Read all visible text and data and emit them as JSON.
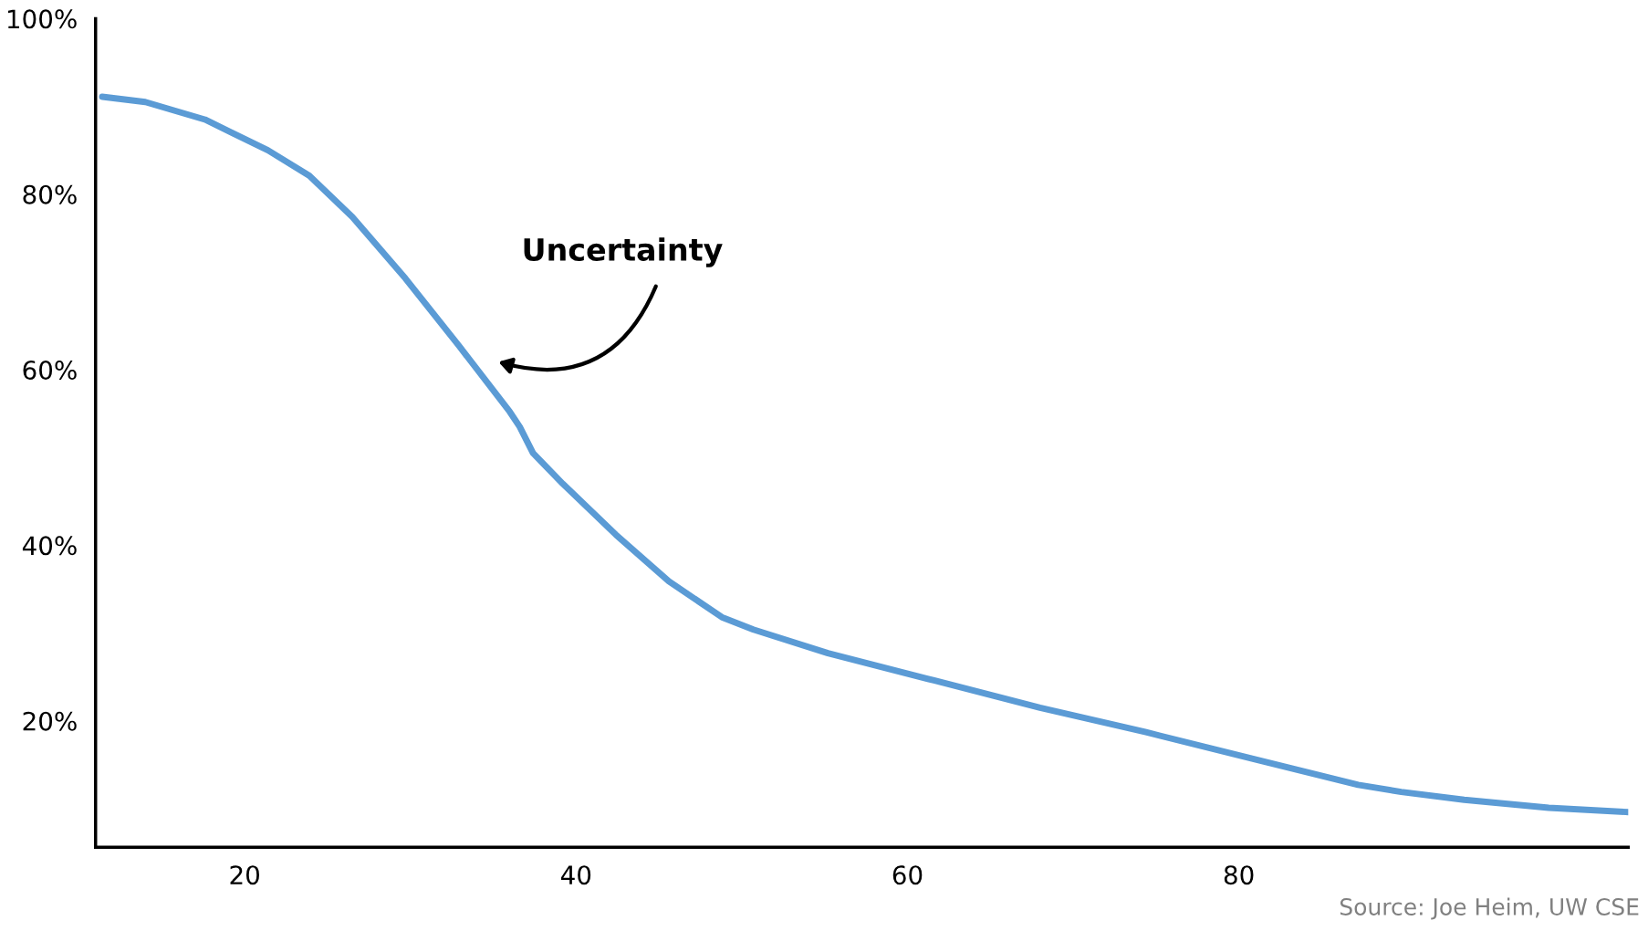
{
  "chart_data": {
    "type": "line",
    "x": [
      11.4,
      14.0,
      17.6,
      21.4,
      23.9,
      26.5,
      29.7,
      32.9,
      36.0,
      36.6,
      37.4,
      39.2,
      42.4,
      45.6,
      48.8,
      50.7,
      55.2,
      61.6,
      68.0,
      74.4,
      80.8,
      87.2,
      89.8,
      93.6,
      98.7,
      103.5
    ],
    "series": [
      {
        "color": "#5b9bd5",
        "values": [
          91.1,
          90.5,
          88.5,
          85.0,
          82.1,
          77.4,
          70.4,
          62.8,
          55.2,
          53.5,
          50.5,
          47.0,
          41.2,
          35.9,
          31.8,
          30.4,
          27.7,
          24.6,
          21.5,
          18.7,
          15.7,
          12.7,
          11.9,
          11.0,
          10.1,
          9.6
        ]
      }
    ],
    "xlim": [
      11,
      103.5
    ],
    "xticks": [
      20,
      40,
      60,
      80
    ],
    "ylim": [
      5.6,
      100
    ],
    "yticks": [
      {
        "value": 20,
        "label": "20%"
      },
      {
        "value": 40,
        "label": "40%"
      },
      {
        "value": 60,
        "label": "60%"
      },
      {
        "value": 80,
        "label": "80%"
      },
      {
        "value": 100,
        "label": "100%"
      }
    ],
    "grid": false,
    "legend": false,
    "marker": "none",
    "line_style": "solid",
    "annotations": [
      "Uncertainty",
      "Source: Joe Heim, UW CSE"
    ]
  }
}
